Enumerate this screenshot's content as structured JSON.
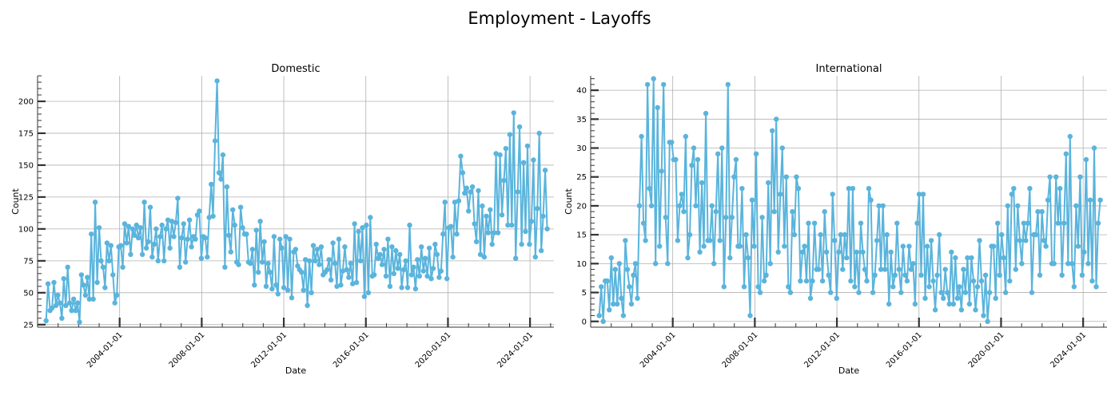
{
  "suptitle": "Employment - Layoffs",
  "style": {
    "line_color": "#5ab4dc",
    "grid_color": "#b0b0b0",
    "axis_color": "#333333"
  },
  "chart_data": [
    {
      "type": "line",
      "title": "Domestic",
      "xlabel": "Date",
      "ylabel": "Count",
      "x_ticks": [
        "2004-01-01",
        "2008-01-01",
        "2012-01-01",
        "2016-01-01",
        "2020-01-01",
        "2024-01-01"
      ],
      "y_ticks": [
        25,
        50,
        75,
        100,
        125,
        150,
        175,
        200
      ],
      "xlim": [
        "2000-01-01",
        "2025-03-01"
      ],
      "ylim": [
        23,
        220
      ],
      "grid": true,
      "x_start": "2000-06-01",
      "x_end": "2024-11-01",
      "values": [
        28,
        57,
        36,
        38,
        58,
        40,
        48,
        42,
        30,
        61,
        40,
        70,
        42,
        36,
        45,
        36,
        42,
        27,
        64,
        56,
        48,
        62,
        45,
        96,
        45,
        121,
        58,
        101,
        75,
        70,
        54,
        89,
        75,
        87,
        64,
        42,
        48,
        86,
        87,
        70,
        104,
        89,
        102,
        80,
        100,
        95,
        103,
        93,
        101,
        80,
        121,
        85,
        90,
        117,
        78,
        88,
        100,
        75,
        94,
        103,
        75,
        100,
        107,
        85,
        106,
        94,
        105,
        124,
        70,
        93,
        104,
        74,
        92,
        107,
        86,
        94,
        92,
        111,
        114,
        77,
        94,
        93,
        78,
        109,
        135,
        110,
        169,
        216,
        144,
        139,
        158,
        70,
        133,
        95,
        82,
        115,
        103,
        74,
        72,
        117,
        101,
        96,
        96,
        74,
        73,
        84,
        56,
        99,
        66,
        106,
        74,
        90,
        55,
        73,
        66,
        53,
        94,
        56,
        49,
        92,
        85,
        54,
        94,
        52,
        92,
        46,
        82,
        84,
        71,
        68,
        66,
        52,
        76,
        40,
        75,
        50,
        87,
        75,
        84,
        72,
        86,
        64,
        66,
        68,
        76,
        60,
        89,
        73,
        55,
        92,
        56,
        67,
        86,
        68,
        62,
        73,
        57,
        104,
        58,
        98,
        75,
        101,
        47,
        103,
        50,
        109,
        63,
        64,
        88,
        77,
        80,
        72,
        84,
        63,
        92,
        55,
        86,
        65,
        83,
        69,
        80,
        54,
        68,
        75,
        54,
        103,
        64,
        70,
        53,
        76,
        63,
        86,
        67,
        77,
        63,
        85,
        61,
        69,
        88,
        80,
        62,
        67,
        96,
        121,
        61,
        101,
        102,
        78,
        121,
        96,
        122,
        157,
        144,
        128,
        132,
        114,
        129,
        133,
        104,
        90,
        130,
        80,
        118,
        78,
        110,
        97,
        115,
        88,
        97,
        159,
        97,
        158,
        111,
        138,
        163,
        103,
        174,
        103,
        191,
        77,
        129,
        180,
        88,
        152,
        98,
        165,
        88,
        106,
        154,
        78,
        116,
        175,
        83,
        110,
        146,
        100
      ]
    },
    {
      "type": "line",
      "title": "International",
      "xlabel": "Date",
      "ylabel": "Count",
      "x_ticks": [
        "2004-01-01",
        "2008-01-01",
        "2012-01-01",
        "2016-01-01",
        "2020-01-01",
        "2024-01-01"
      ],
      "y_ticks": [
        0,
        5,
        10,
        15,
        20,
        25,
        30,
        35,
        40
      ],
      "xlim": [
        "2000-01-01",
        "2025-03-01"
      ],
      "ylim": [
        -1,
        42.5
      ],
      "grid": true,
      "x_start": "2000-06-01",
      "x_end": "2024-11-01",
      "values": [
        1,
        6,
        0,
        7,
        7,
        2,
        11,
        3,
        9,
        3,
        10,
        4,
        1,
        14,
        9,
        6,
        3,
        8,
        10,
        4,
        20,
        32,
        17,
        14,
        41,
        23,
        20,
        42,
        10,
        37,
        13,
        26,
        41,
        18,
        10,
        31,
        31,
        28,
        28,
        14,
        20,
        22,
        19,
        32,
        11,
        15,
        27,
        30,
        20,
        28,
        12,
        24,
        13,
        36,
        14,
        14,
        20,
        10,
        19,
        29,
        14,
        30,
        6,
        18,
        41,
        11,
        18,
        25,
        28,
        13,
        13,
        23,
        6,
        15,
        11,
        1,
        21,
        13,
        29,
        6,
        5,
        18,
        7,
        8,
        24,
        10,
        33,
        19,
        35,
        12,
        22,
        30,
        13,
        25,
        6,
        5,
        19,
        15,
        25,
        23,
        7,
        12,
        13,
        7,
        17,
        4,
        7,
        17,
        9,
        9,
        15,
        7,
        19,
        12,
        8,
        5,
        22,
        14,
        4,
        12,
        15,
        9,
        15,
        11,
        23,
        7,
        23,
        6,
        12,
        5,
        17,
        12,
        9,
        7,
        23,
        21,
        5,
        8,
        14,
        20,
        9,
        20,
        9,
        15,
        3,
        12,
        6,
        8,
        17,
        9,
        5,
        13,
        8,
        7,
        13,
        9,
        10,
        3,
        17,
        22,
        8,
        22,
        4,
        13,
        6,
        14,
        7,
        2,
        8,
        15,
        5,
        4,
        9,
        5,
        3,
        12,
        3,
        11,
        4,
        6,
        2,
        9,
        5,
        11,
        3,
        11,
        7,
        2,
        6,
        14,
        7,
        1,
        8,
        0,
        5,
        13,
        13,
        4,
        17,
        8,
        15,
        11,
        5,
        20,
        7,
        22,
        23,
        9,
        20,
        14,
        10,
        17,
        14,
        17,
        23,
        5,
        15,
        15,
        19,
        8,
        19,
        14,
        13,
        21,
        25,
        10,
        10,
        25,
        17,
        23,
        8,
        17,
        29,
        10,
        32,
        10,
        6,
        20,
        13,
        25,
        8,
        12,
        28,
        10,
        21,
        7,
        30,
        6,
        17,
        21
      ]
    }
  ]
}
